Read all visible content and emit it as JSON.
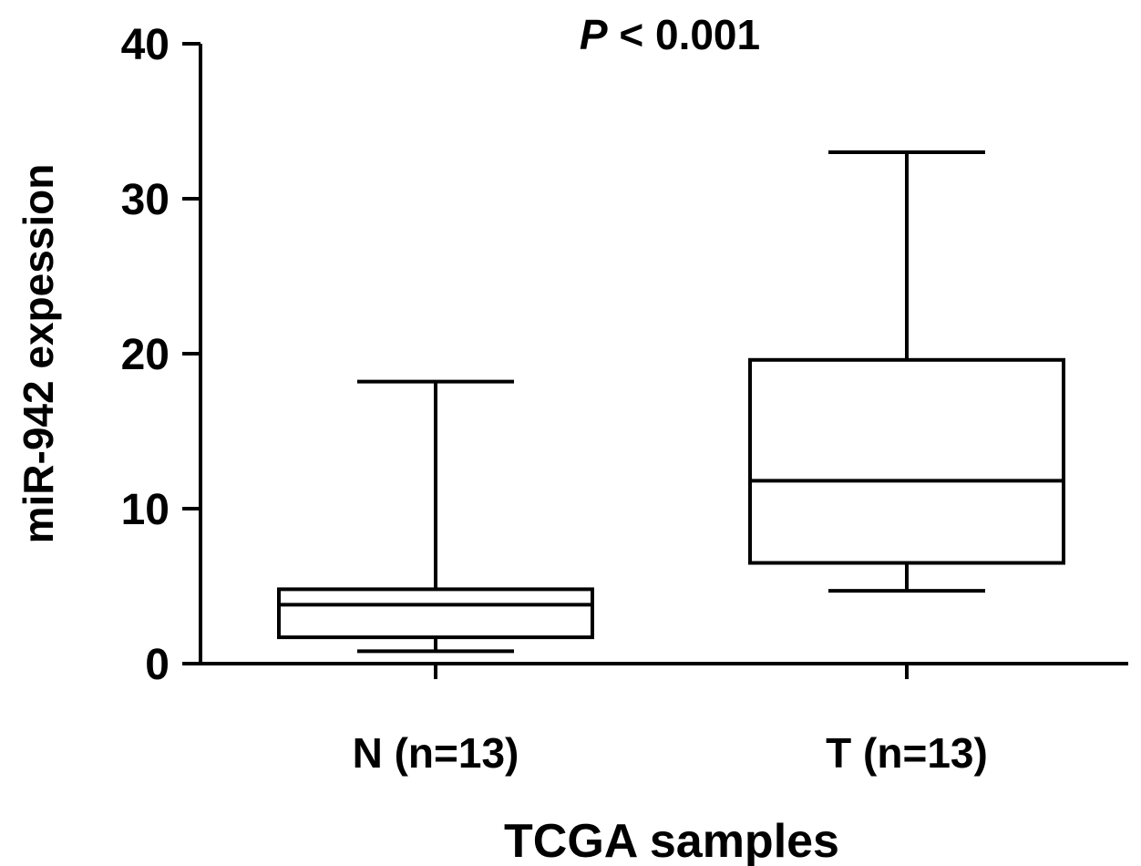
{
  "chart_data": {
    "type": "box",
    "title_prefix": "P",
    "title_suffix": " < 0.001",
    "xlabel": "TCGA samples",
    "ylabel": "miR-942 expession",
    "ylim": [
      0,
      40
    ],
    "yticks": [
      "0",
      "10",
      "20",
      "30",
      "40"
    ],
    "ytick_values": [
      0,
      10,
      20,
      30,
      40
    ],
    "grid": false,
    "categories": [
      "N (n=13)",
      "T (n=13)"
    ],
    "boxes": [
      {
        "category": "N (n=13)",
        "min": 0.8,
        "q1": 1.7,
        "median": 3.8,
        "q3": 4.8,
        "max": 18.2
      },
      {
        "category": "T (n=13)",
        "min": 4.7,
        "q1": 6.5,
        "median": 11.8,
        "q3": 19.6,
        "max": 33.0
      }
    ],
    "colors": {
      "stroke": "#000000",
      "fill": "#ffffff"
    }
  }
}
